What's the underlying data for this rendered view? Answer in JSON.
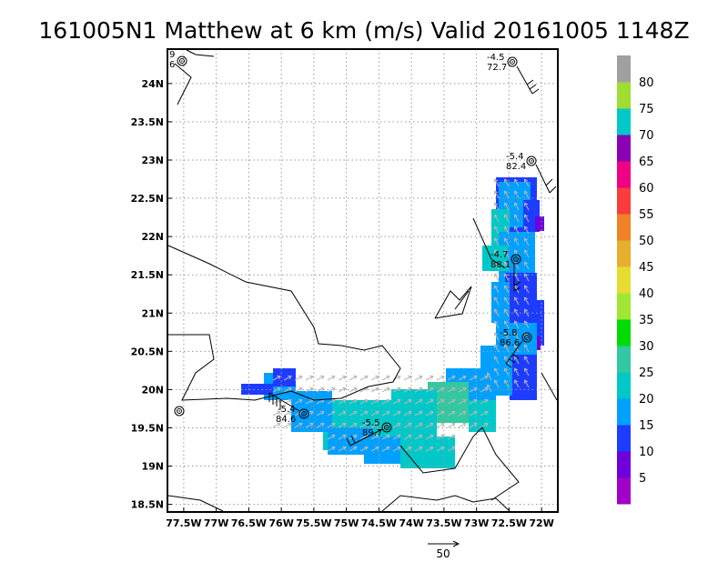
{
  "title": "161005N1 Matthew at 6 km (m/s) Valid 20161005 1148Z",
  "map": {
    "lon_range": [
      -77.75,
      -71.75
    ],
    "lat_range": [
      18.4,
      24.45
    ],
    "lon_ticks": [
      "77.5W",
      "77W",
      "76.5W",
      "76W",
      "75.5W",
      "75W",
      "74.5W",
      "74W",
      "73.5W",
      "73W",
      "72.5W",
      "72W"
    ],
    "lat_ticks": [
      "24N",
      "23.5N",
      "23N",
      "22.5N",
      "22N",
      "21.5N",
      "21N",
      "20.5N",
      "20N",
      "19.5N",
      "19N",
      "18.5N"
    ],
    "grid": "dotted"
  },
  "colorbar": {
    "labels": [
      "5",
      "10",
      "15",
      "20",
      "25",
      "30",
      "35",
      "40",
      "45",
      "50",
      "55",
      "60",
      "65",
      "70",
      "75",
      "80"
    ],
    "colors": [
      "#a000c8",
      "#6e00dc",
      "#1e3cff",
      "#00a0ff",
      "#00c8c8",
      "#33c8a0",
      "#00dc00",
      "#a0e632",
      "#e6dc32",
      "#e6af2d",
      "#f08228",
      "#fa3c3c",
      "#f00082",
      "#8c00b4",
      "#00c8c8",
      "#a0dc32",
      "#a0a0a0"
    ]
  },
  "stations": [
    {
      "top": "9",
      "bottom": "6"
    },
    {
      "top": "-4.5",
      "bottom": "72.7"
    },
    {
      "top": "-5.4",
      "bottom": "82.4"
    },
    {
      "top": "-4.7",
      "bottom": "88.1"
    },
    {
      "top": "-5.8",
      "bottom": "86.6"
    },
    {
      "top": "-5.4",
      "bottom": "84.6"
    },
    {
      "top": "-5.5",
      "bottom": "89.7"
    }
  ],
  "reference_vector": {
    "label": "50"
  }
}
